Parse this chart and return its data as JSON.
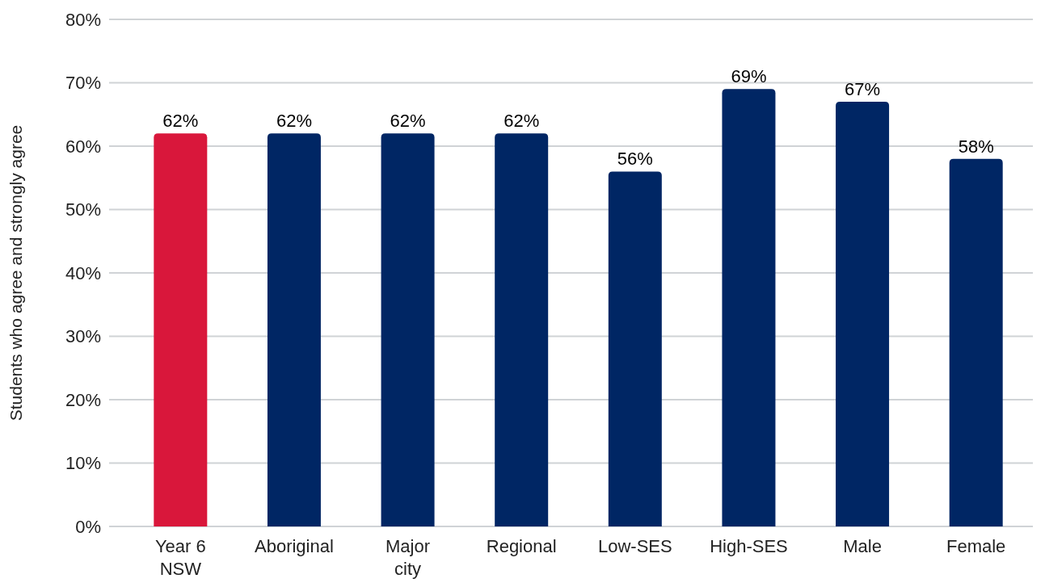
{
  "chart_data": {
    "type": "bar",
    "ylabel": "Students who agree and strongly agree",
    "categories": [
      "Year 6 NSW",
      "Aboriginal",
      "Major city",
      "Regional",
      "Low-SES",
      "High-SES",
      "Male",
      "Female"
    ],
    "values": [
      62,
      62,
      62,
      62,
      56,
      69,
      67,
      58
    ],
    "value_labels": [
      "62%",
      "62%",
      "62%",
      "62%",
      "56%",
      "69%",
      "67%",
      "58%"
    ],
    "colors": [
      "#d9173b",
      "#002664",
      "#002664",
      "#002664",
      "#002664",
      "#002664",
      "#002664",
      "#002664"
    ],
    "ylim": [
      0,
      80
    ],
    "yticks": [
      {
        "value": 0,
        "label": "0%"
      },
      {
        "value": 10,
        "label": "10%"
      },
      {
        "value": 20,
        "label": "20%"
      },
      {
        "value": 30,
        "label": "30%"
      },
      {
        "value": 40,
        "label": "40%"
      },
      {
        "value": 50,
        "label": "50%"
      },
      {
        "value": 60,
        "label": "60%"
      },
      {
        "value": 70,
        "label": "70%"
      },
      {
        "value": 80,
        "label": "80%"
      }
    ],
    "grid": "y"
  }
}
